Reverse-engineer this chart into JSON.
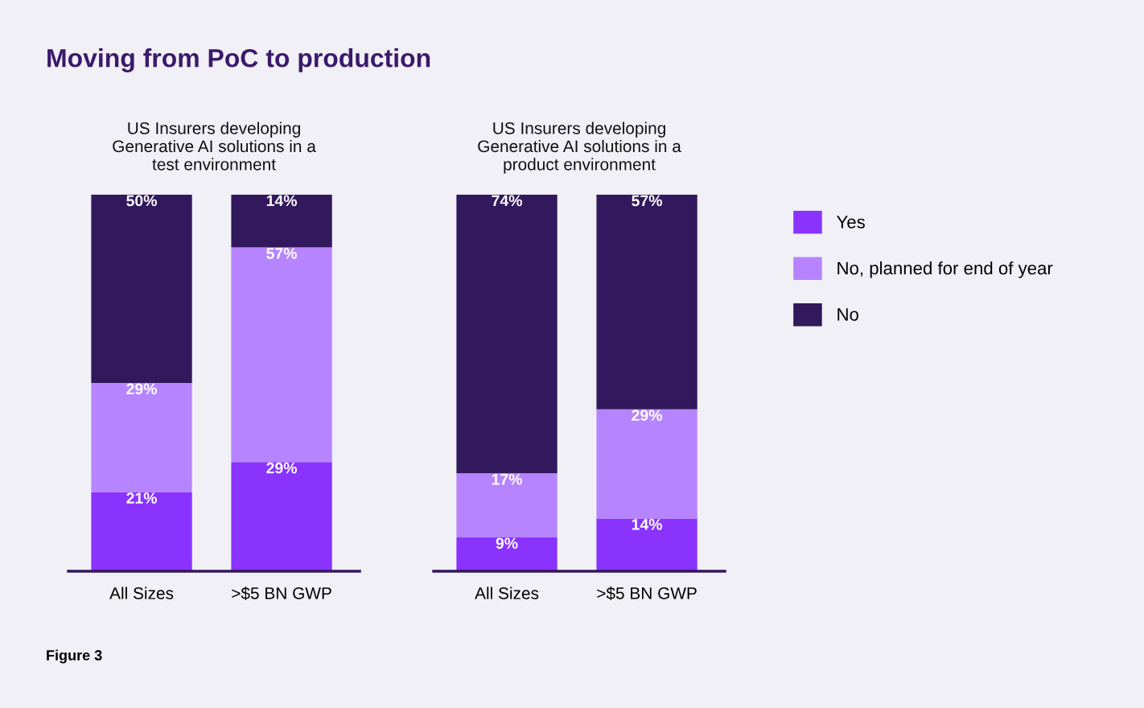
{
  "chart_data": [
    {
      "type": "bar",
      "title": "Moving from PoC to production",
      "subtitle": "US Insurers developing\nGenerative AI solutions in a\ntest environment",
      "categories": [
        "All Sizes",
        ">$5 BN GWP"
      ],
      "stacked": true,
      "tick_labels": "x",
      "legend": false,
      "grid": false,
      "series": [
        {
          "color": "#8a33ff",
          "values": [
            21,
            29
          ],
          "value_labels": [
            "21%",
            "29%"
          ]
        },
        {
          "color": "#b784ff",
          "values": [
            29,
            57
          ],
          "value_labels": [
            "29%",
            "57%"
          ]
        },
        {
          "color": "#32185c",
          "values": [
            50,
            14
          ],
          "value_labels": [
            "50%",
            "14%"
          ]
        }
      ],
      "annotations": [
        "Figure 3"
      ]
    },
    {
      "type": "bar",
      "subtitle": "US Insurers developing\nGenerative AI solutions in a\nproduct environment",
      "categories": [
        "All Sizes",
        ">$5 BN GWP"
      ],
      "stacked": true,
      "tick_labels": "x",
      "legend": "right",
      "grid": false,
      "series": [
        {
          "name": "Yes",
          "color": "#8a33ff",
          "values": [
            9,
            14
          ],
          "value_labels": [
            "9%",
            "14%"
          ]
        },
        {
          "name": "No, planned for end of year",
          "color": "#b784ff",
          "values": [
            17,
            29
          ],
          "value_labels": [
            "17%",
            "29%"
          ]
        },
        {
          "name": "No",
          "color": "#32185c",
          "values": [
            74,
            57
          ],
          "value_labels": [
            "74%",
            "57%"
          ]
        }
      ]
    }
  ]
}
